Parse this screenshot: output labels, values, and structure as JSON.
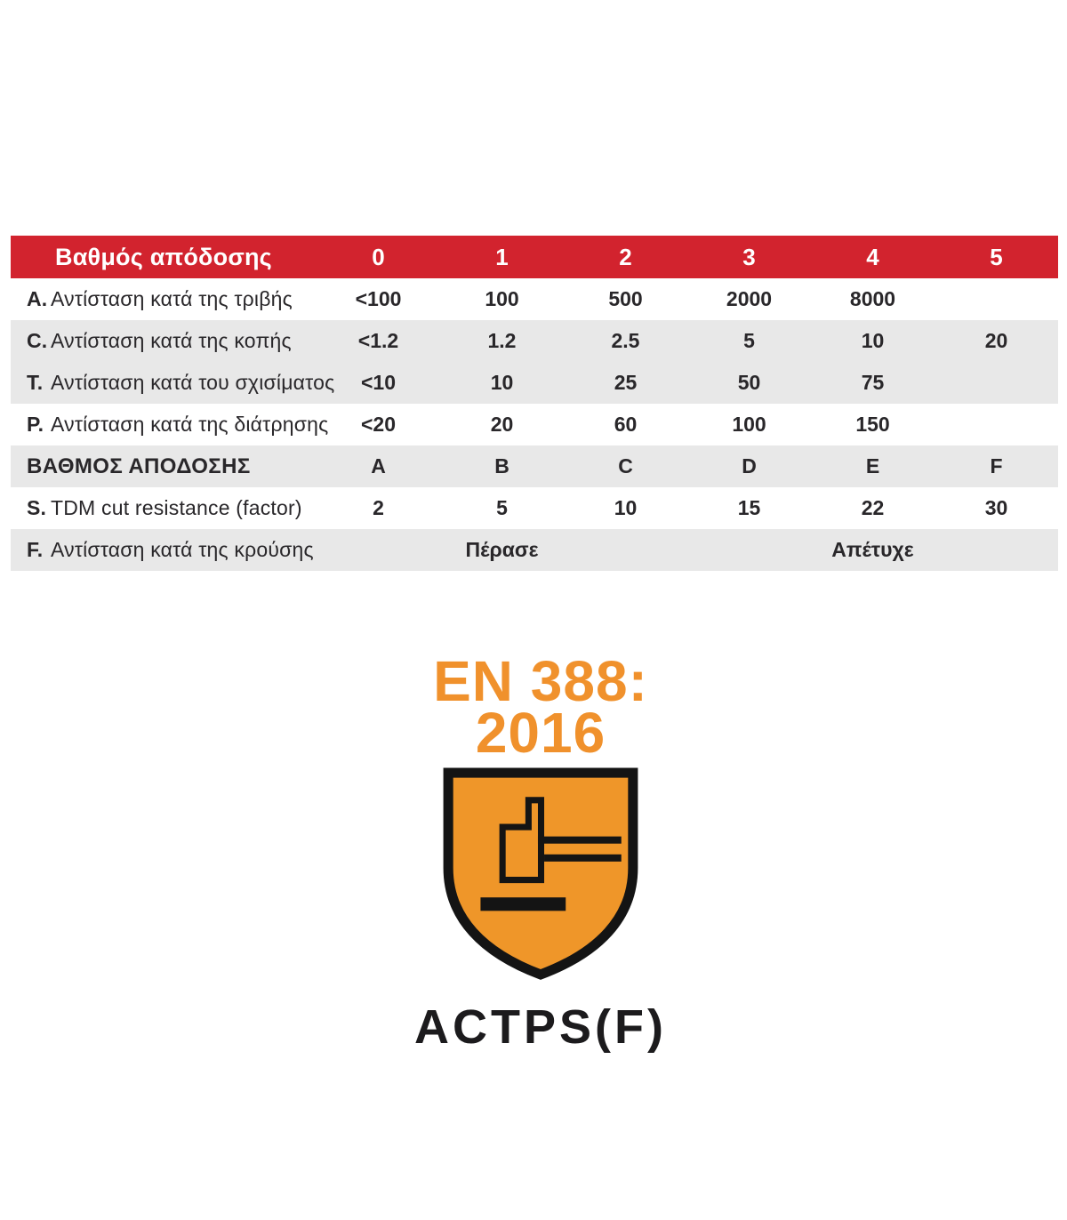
{
  "colors": {
    "header_red": "#d2232e",
    "row_gray": "#e8e8e8",
    "orange_text": "#f0912c",
    "orange_shield": "#ef9629",
    "text_dark": "#29272a",
    "header_text": "#ffffff"
  },
  "table": {
    "header": {
      "label": "Βαθμός απόδοσης",
      "columns": [
        "0",
        "1",
        "2",
        "3",
        "4",
        "5"
      ]
    },
    "rows": [
      {
        "prefix": "A.",
        "label": "Αντίσταση κατά της τριβής",
        "shade": "white",
        "bold": false,
        "values": [
          "<100",
          "100",
          "500",
          "2000",
          "8000",
          ""
        ]
      },
      {
        "prefix": "C.",
        "label": "Αντίσταση κατά της κοπής",
        "shade": "gray",
        "bold": false,
        "values": [
          "<1.2",
          "1.2",
          "2.5",
          "5",
          "10",
          "20"
        ]
      },
      {
        "prefix": "T.",
        "label": "Αντίσταση κατά του σχισίματος",
        "shade": "gray",
        "bold": false,
        "values": [
          "<10",
          "10",
          "25",
          "50",
          "75",
          ""
        ]
      },
      {
        "prefix": "P.",
        "label": "Αντίσταση κατά της διάτρησης",
        "shade": "white",
        "bold": false,
        "values": [
          "<20",
          "20",
          "60",
          "100",
          "150",
          ""
        ]
      },
      {
        "prefix": "",
        "label": "ΒΑΘΜΟΣ ΑΠΟΔΟΣΗΣ",
        "shade": "gray",
        "bold": true,
        "values": [
          "A",
          "B",
          "C",
          "D",
          "E",
          "F"
        ]
      },
      {
        "prefix": "S.",
        "label": "TDM cut resistance (factor)",
        "shade": "white",
        "bold": false,
        "values": [
          "2",
          "5",
          "10",
          "15",
          "22",
          "30"
        ]
      },
      {
        "prefix": "F.",
        "label": "Αντίσταση κατά της κρούσης",
        "shade": "gray",
        "bold": false,
        "values": [
          "",
          "Πέρασε",
          "",
          "",
          "Απέτυχε",
          ""
        ]
      }
    ]
  },
  "certification": {
    "standard_line1": "EN 388:",
    "standard_line2": "2016",
    "code": "ACTPS(F)",
    "shield_icon": "impact-protection-shield"
  },
  "chart_data": {
    "type": "table",
    "title": "EN 388:2016 βαθμοί απόδοσης",
    "columns": [
      "Βαθμός απόδοσης",
      "0",
      "1",
      "2",
      "3",
      "4",
      "5"
    ],
    "rows": [
      [
        "A. Αντίσταση κατά της τριβής",
        "<100",
        "100",
        "500",
        "2000",
        "8000",
        ""
      ],
      [
        "C. Αντίσταση κατά της κοπής",
        "<1.2",
        "1.2",
        "2.5",
        "5",
        "10",
        "20"
      ],
      [
        "T. Αντίσταση κατά του σχισίματος",
        "<10",
        "10",
        "25",
        "50",
        "75",
        ""
      ],
      [
        "P. Αντίσταση κατά της διάτρησης",
        "<20",
        "20",
        "60",
        "100",
        "150",
        ""
      ],
      [
        "ΒΑΘΜΟΣ ΑΠΟΔΟΣΗΣ",
        "A",
        "B",
        "C",
        "D",
        "E",
        "F"
      ],
      [
        "S. TDM cut resistance (factor)",
        "2",
        "5",
        "10",
        "15",
        "22",
        "30"
      ],
      [
        "F. Αντίσταση κατά της κρούσης",
        "",
        "Πέρασε",
        "",
        "",
        "Απέτυχε",
        ""
      ]
    ],
    "legend_position": "none",
    "grid": false
  }
}
